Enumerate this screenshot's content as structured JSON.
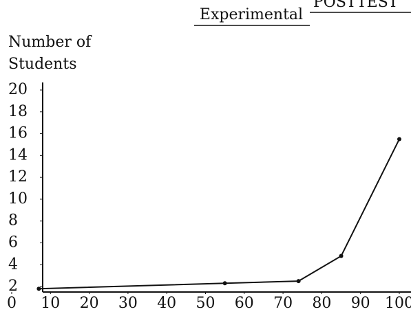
{
  "chart_data": {
    "type": "line",
    "header": "POSTTEST",
    "title": "Experimental",
    "y_label": [
      "Number of",
      "Students"
    ],
    "x": [
      7,
      55,
      74,
      85,
      100
    ],
    "series": [
      {
        "name": "Experimental",
        "color": "#111111",
        "values": [
          1.8,
          2.3,
          2.5,
          4.8,
          15.5
        ]
      }
    ],
    "xlim": [
      0,
      100
    ],
    "xticks": [
      0,
      10,
      20,
      30,
      40,
      50,
      60,
      70,
      80,
      90,
      100
    ],
    "ylim": [
      1.5,
      20
    ],
    "yticks": [
      2,
      4,
      6,
      8,
      10,
      12,
      14,
      16,
      18,
      20
    ],
    "grid": false
  }
}
